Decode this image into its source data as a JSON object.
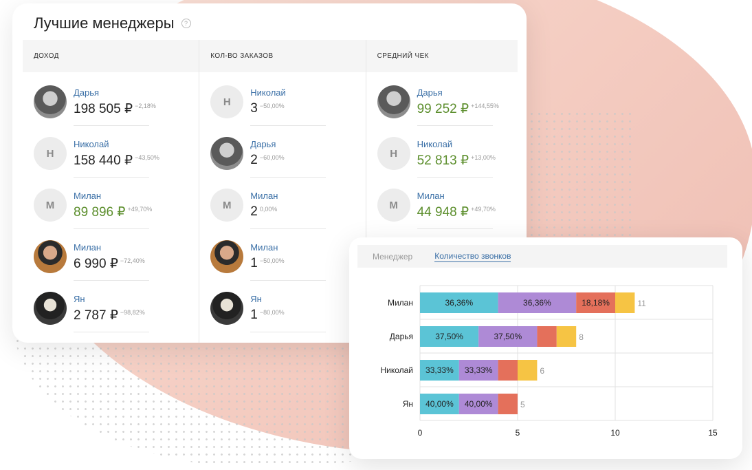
{
  "card": {
    "title": "Лучшие менеджеры",
    "help_icon": "?",
    "columns": [
      {
        "header": "ДОХОД",
        "rows": [
          {
            "name": "Дарья",
            "value": "198 505 ₽",
            "delta": "−2,18%",
            "avatar": "photo-f",
            "initial": "",
            "green": false
          },
          {
            "name": "Николай",
            "value": "158 440 ₽",
            "delta": "−43,50%",
            "avatar": "initial",
            "initial": "Н",
            "green": false
          },
          {
            "name": "Милан",
            "value": "89 896 ₽",
            "delta": "+49,70%",
            "avatar": "initial",
            "initial": "М",
            "green": true
          },
          {
            "name": "Милан",
            "value": "6 990 ₽",
            "delta": "−72,40%",
            "avatar": "photo-m",
            "initial": "",
            "green": false
          },
          {
            "name": "Ян",
            "value": "2 787 ₽",
            "delta": "−98,82%",
            "avatar": "photo-y",
            "initial": "",
            "green": false
          }
        ]
      },
      {
        "header": "КОЛ-ВО ЗАКАЗОВ",
        "rows": [
          {
            "name": "Николай",
            "value": "3",
            "delta": "−50,00%",
            "avatar": "initial",
            "initial": "Н",
            "green": false
          },
          {
            "name": "Дарья",
            "value": "2",
            "delta": "−60,00%",
            "avatar": "photo-f",
            "initial": "",
            "green": false
          },
          {
            "name": "Милан",
            "value": "2",
            "delta": "0,00%",
            "avatar": "initial",
            "initial": "М",
            "green": false
          },
          {
            "name": "Милан",
            "value": "1",
            "delta": "−50,00%",
            "avatar": "photo-m",
            "initial": "",
            "green": false
          },
          {
            "name": "Ян",
            "value": "1",
            "delta": "−80,00%",
            "avatar": "photo-y",
            "initial": "",
            "green": false
          }
        ]
      },
      {
        "header": "СРЕДНИЙ ЧЕК",
        "rows": [
          {
            "name": "Дарья",
            "value": "99 252 ₽",
            "delta": "+144,55%",
            "avatar": "photo-f",
            "initial": "",
            "green": true
          },
          {
            "name": "Николай",
            "value": "52 813 ₽",
            "delta": "+13,00%",
            "avatar": "initial",
            "initial": "Н",
            "green": true
          },
          {
            "name": "Милан",
            "value": "44 948 ₽",
            "delta": "+49,70%",
            "avatar": "initial",
            "initial": "М",
            "green": true
          }
        ]
      }
    ]
  },
  "chart_panel": {
    "tabs": [
      {
        "label": "Менеджер",
        "active": false
      },
      {
        "label": "Количество звонков",
        "active": true
      }
    ]
  },
  "colors": {
    "cyan": "#5bc4d6",
    "purple": "#ae8ad6",
    "red": "#e4705b",
    "yellow": "#f6c444",
    "link": "#3a6fa6",
    "green": "#5d8f2e"
  },
  "chart_data": {
    "type": "bar",
    "orientation": "horizontal",
    "stacked": true,
    "categories": [
      "Милан",
      "Дарья",
      "Николай",
      "Ян"
    ],
    "series": [
      {
        "color": "#5bc4d6",
        "values": [
          4,
          3,
          2,
          2
        ],
        "labels": [
          "36,36%",
          "37,50%",
          "33,33%",
          "40,00%"
        ]
      },
      {
        "color": "#ae8ad6",
        "values": [
          4,
          3,
          2,
          2
        ],
        "labels": [
          "36,36%",
          "37,50%",
          "33,33%",
          "40,00%"
        ]
      },
      {
        "color": "#e4705b",
        "values": [
          2,
          1,
          1,
          1
        ],
        "labels": [
          "18,18%",
          "",
          "",
          ""
        ]
      },
      {
        "color": "#f6c444",
        "values": [
          1,
          1,
          1,
          0
        ],
        "labels": [
          "",
          "",
          "",
          ""
        ]
      }
    ],
    "totals": [
      "11",
      "8",
      "6",
      "5"
    ],
    "xlim": [
      0,
      15
    ],
    "xticks": [
      "0",
      "5",
      "10",
      "15"
    ],
    "grid": true
  }
}
